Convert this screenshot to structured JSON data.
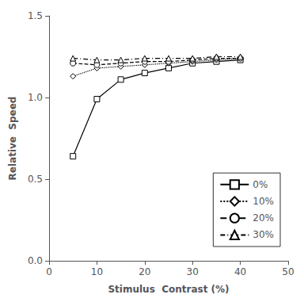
{
  "chart_data": {
    "type": "line",
    "x": [
      5,
      10,
      15,
      20,
      25,
      30,
      35,
      40
    ],
    "series": [
      {
        "name": "0%",
        "color": "black",
        "marker": "square",
        "line_style": "solid",
        "values": [
          0.64,
          0.99,
          1.11,
          1.15,
          1.18,
          1.21,
          1.22,
          1.23
        ]
      },
      {
        "name": "10%",
        "color": "black",
        "marker": "diamond",
        "line_style": "dotted",
        "values": [
          1.13,
          1.18,
          1.19,
          1.2,
          1.21,
          1.22,
          1.23,
          1.24
        ]
      },
      {
        "name": "20%",
        "color": "black",
        "marker": "circle",
        "line_style": "dashed",
        "values": [
          1.21,
          1.2,
          1.21,
          1.22,
          1.22,
          1.23,
          1.24,
          1.24
        ]
      },
      {
        "name": "30%",
        "color": "black",
        "marker": "triangle",
        "line_style": "dashdot",
        "values": [
          1.24,
          1.23,
          1.23,
          1.24,
          1.24,
          1.24,
          1.25,
          1.25
        ]
      }
    ],
    "x_label": "Stimulus  Contrast (%)",
    "y_label": "Relative  Speed",
    "xlim": [
      0,
      50
    ],
    "ylim": [
      0,
      1.5
    ],
    "xticks": [
      0,
      10,
      20,
      30,
      40,
      50
    ],
    "yticks": [
      {
        "value": 0,
        "label": "0.0"
      },
      0.5,
      {
        "value": 1,
        "label": "1.0"
      },
      1.5
    ],
    "grid": false,
    "legend": "lower right"
  }
}
